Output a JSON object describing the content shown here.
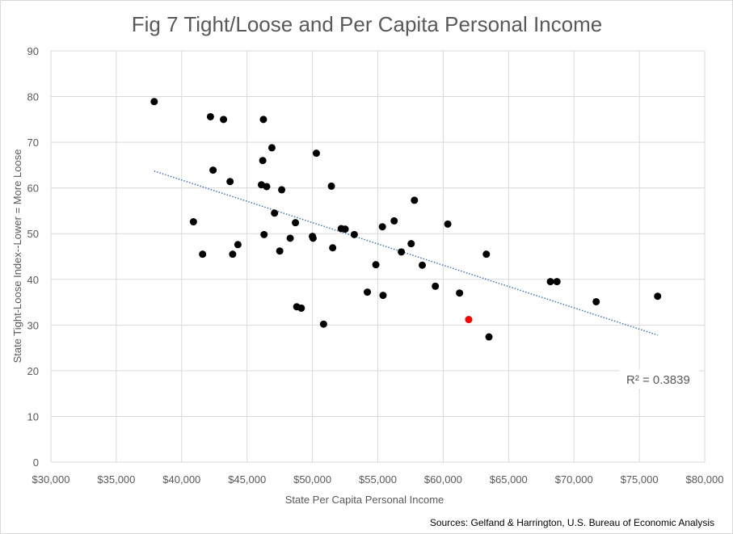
{
  "chart_data": {
    "type": "scatter",
    "title": "Fig 7 Tight/Loose and Per Capita Personal Income",
    "xlabel": "State Per Capita Personal Income",
    "ylabel": "State Tight-Loose Index--Lower = More Loose",
    "xlim": [
      30000,
      80000
    ],
    "ylim": [
      0,
      90
    ],
    "x_ticks": [
      30000,
      35000,
      40000,
      45000,
      50000,
      55000,
      60000,
      65000,
      70000,
      75000,
      80000
    ],
    "x_tick_labels": [
      "$30,000",
      "$35,000",
      "$40,000",
      "$45,000",
      "$50,000",
      "$55,000",
      "$60,000",
      "$65,000",
      "$70,000",
      "$75,000",
      "$80,000"
    ],
    "y_ticks": [
      0,
      10,
      20,
      30,
      40,
      50,
      60,
      70,
      80,
      90
    ],
    "y_tick_labels": [
      "0",
      "10",
      "20",
      "30",
      "40",
      "50",
      "60",
      "70",
      "80",
      "90"
    ],
    "grid": true,
    "point_color": "#000000",
    "highlight_color": "#ff0000",
    "trendline_color": "#4472c4",
    "points": [
      {
        "x": 37900,
        "y": 78.9
      },
      {
        "x": 40900,
        "y": 52.6
      },
      {
        "x": 41600,
        "y": 45.5
      },
      {
        "x": 42200,
        "y": 75.6
      },
      {
        "x": 42400,
        "y": 63.9
      },
      {
        "x": 43200,
        "y": 75.0
      },
      {
        "x": 43700,
        "y": 61.4
      },
      {
        "x": 43900,
        "y": 45.5
      },
      {
        "x": 44300,
        "y": 47.6
      },
      {
        "x": 46100,
        "y": 60.7
      },
      {
        "x": 46200,
        "y": 66.0
      },
      {
        "x": 46250,
        "y": 75.0
      },
      {
        "x": 46300,
        "y": 49.8
      },
      {
        "x": 46500,
        "y": 60.3
      },
      {
        "x": 46900,
        "y": 68.8
      },
      {
        "x": 47100,
        "y": 54.5
      },
      {
        "x": 47500,
        "y": 46.2
      },
      {
        "x": 47650,
        "y": 59.6
      },
      {
        "x": 48300,
        "y": 49.0
      },
      {
        "x": 48700,
        "y": 52.4
      },
      {
        "x": 48800,
        "y": 34.0
      },
      {
        "x": 49150,
        "y": 33.7
      },
      {
        "x": 50000,
        "y": 49.4
      },
      {
        "x": 50050,
        "y": 49.0
      },
      {
        "x": 50300,
        "y": 67.6
      },
      {
        "x": 50850,
        "y": 30.2
      },
      {
        "x": 51450,
        "y": 60.4
      },
      {
        "x": 51550,
        "y": 46.9
      },
      {
        "x": 52200,
        "y": 51.1
      },
      {
        "x": 52500,
        "y": 51.0
      },
      {
        "x": 53200,
        "y": 49.8
      },
      {
        "x": 54200,
        "y": 37.2
      },
      {
        "x": 54850,
        "y": 43.2
      },
      {
        "x": 55350,
        "y": 51.5
      },
      {
        "x": 55400,
        "y": 36.5
      },
      {
        "x": 56250,
        "y": 52.8
      },
      {
        "x": 56800,
        "y": 46.0
      },
      {
        "x": 57550,
        "y": 47.8
      },
      {
        "x": 57800,
        "y": 57.3
      },
      {
        "x": 58400,
        "y": 43.1
      },
      {
        "x": 59400,
        "y": 38.5
      },
      {
        "x": 60350,
        "y": 52.1
      },
      {
        "x": 61250,
        "y": 37.0
      },
      {
        "x": 63300,
        "y": 45.5
      },
      {
        "x": 63500,
        "y": 27.4
      },
      {
        "x": 68200,
        "y": 39.5
      },
      {
        "x": 68700,
        "y": 39.5
      },
      {
        "x": 71700,
        "y": 35.1
      },
      {
        "x": 76400,
        "y": 36.3
      }
    ],
    "highlight_points": [
      {
        "x": 61950,
        "y": 31.2
      }
    ],
    "trendline": {
      "x": [
        37900,
        76400
      ],
      "y": [
        63.7,
        27.8
      ]
    },
    "annotation": "R² = 0.3839"
  },
  "source_note": "Sources: Gelfand & Harrington, U.S.  Bureau of Economic Analysis"
}
